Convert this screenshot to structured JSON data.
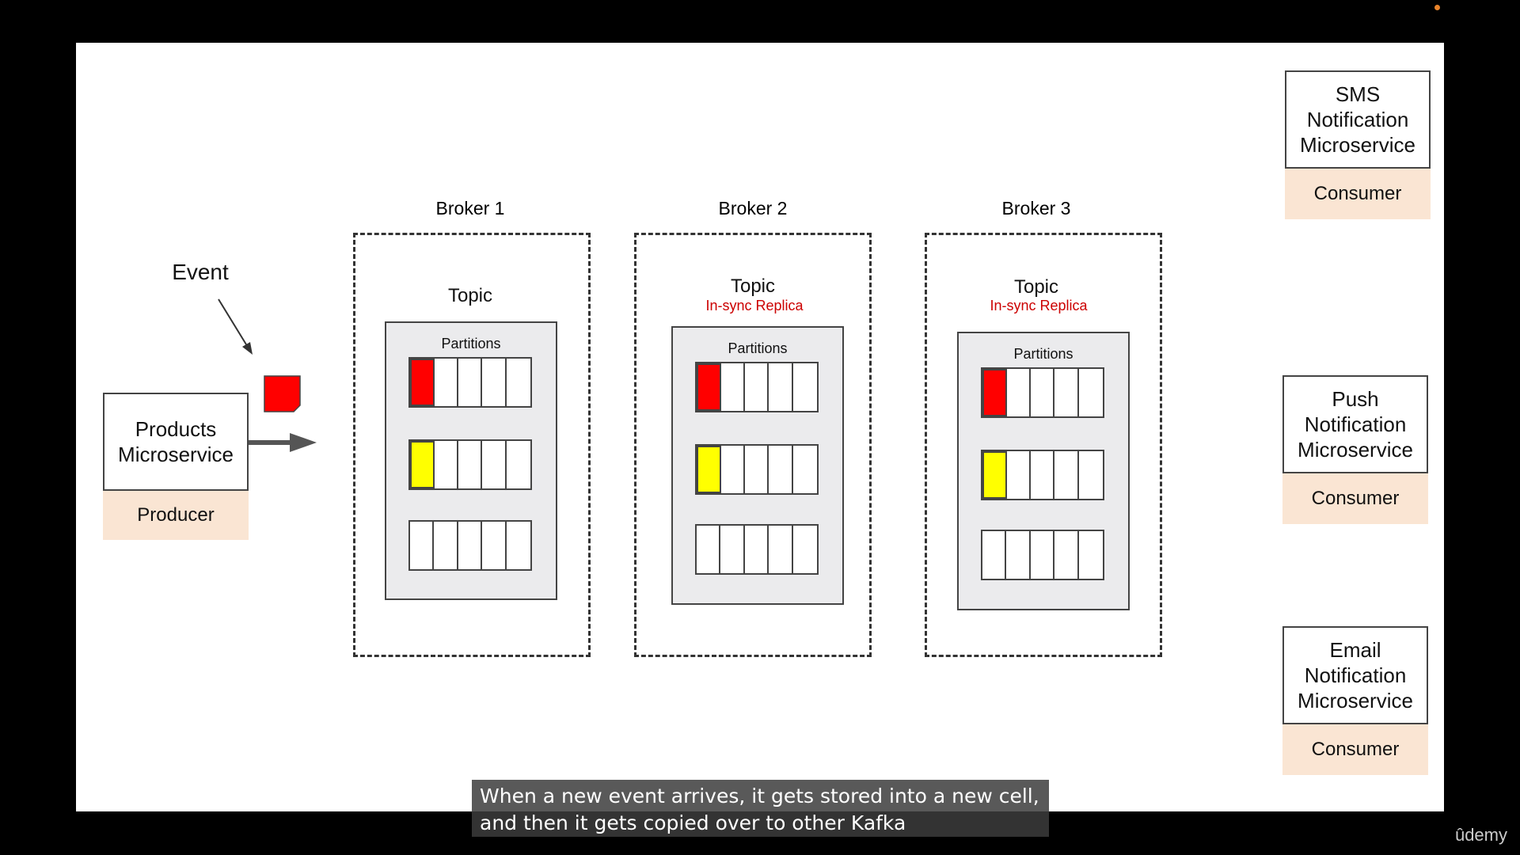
{
  "event": {
    "label": "Event"
  },
  "producer": {
    "name": "Products Microservice",
    "role": "Producer"
  },
  "brokers": [
    {
      "title": "Broker 1",
      "topic": "Topic",
      "replica": "",
      "partitions_label": "Partitions"
    },
    {
      "title": "Broker 2",
      "topic": "Topic",
      "replica": "In-sync Replica",
      "partitions_label": "Partitions"
    },
    {
      "title": "Broker 3",
      "topic": "Topic",
      "replica": "In-sync Replica",
      "partitions_label": "Partitions"
    }
  ],
  "consumers": [
    {
      "name": "SMS Notification Microservice",
      "role": "Consumer"
    },
    {
      "name": "Push Notification Microservice",
      "role": "Consumer"
    },
    {
      "name": "Email Notification Microservice",
      "role": "Consumer"
    }
  ],
  "colors": {
    "event": "#ff0000",
    "stored_event_1": "#ff0000",
    "stored_event_2": "#ffff00",
    "role_bg": "#fae5d3",
    "replica_text": "#cc0000"
  },
  "caption": {
    "line1": "When a new event arrives, it gets stored into a new cell,",
    "line2": "and then it gets copied over to other Kafka"
  },
  "brand": {
    "logo": "ûdemy"
  }
}
